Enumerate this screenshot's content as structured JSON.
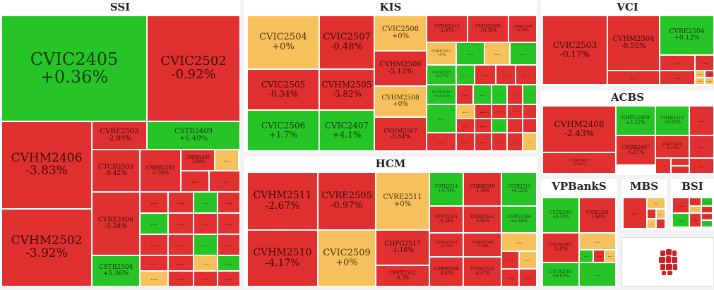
{
  "colors": {
    "red": "#e03030",
    "green": "#27c427",
    "yellow": "#f6c15c",
    "background": "#f2f2f2"
  },
  "more_label": "...",
  "panels": {
    "ssi": {
      "title": "SSI",
      "cells": [
        {
          "name": "CVIC2405",
          "pct": "+0.36%",
          "color": "green"
        },
        {
          "name": "CVIC2502",
          "pct": "-0.92%",
          "color": "red"
        },
        {
          "name": "CVHM2406",
          "pct": "-3.83%",
          "color": "red"
        },
        {
          "name": "CVHM2502",
          "pct": "-3.92%",
          "color": "red"
        },
        {
          "name": "CVRE2503",
          "pct": "-2.89%",
          "color": "red"
        },
        {
          "name": "CSTB2409",
          "pct": "+6.49%",
          "color": "green"
        },
        {
          "name": "CTCB2503",
          "pct": "-9.42%",
          "color": "red"
        },
        {
          "name": "CMBB2503",
          "pct": "-2.56%",
          "color": "red"
        },
        {
          "name": "CMBB2405",
          "pct": "-3.88%",
          "color": "red"
        },
        {
          "name": "CVRE2406",
          "pct": "-5.34%",
          "color": "red"
        },
        {
          "name": "CSTB2504",
          "pct": "+5.36%",
          "color": "green"
        }
      ]
    },
    "kis": {
      "title": "KIS",
      "cells": [
        {
          "name": "CVIC2504",
          "pct": "+0%",
          "color": "yellow"
        },
        {
          "name": "CVIC2507",
          "pct": "-0.48%",
          "color": "red"
        },
        {
          "name": "CVIC2508",
          "pct": "+0%",
          "color": "yellow"
        },
        {
          "name": "CVHM2411",
          "pct": "-2.97%",
          "color": "red"
        },
        {
          "name": "CVHM2509",
          "pct": "-10.58%",
          "color": "red"
        },
        {
          "name": "CVRE2508",
          "pct": "-4.35%",
          "color": "red"
        },
        {
          "name": "CVIC2505",
          "pct": "-0.34%",
          "color": "red"
        },
        {
          "name": "CVHM2505",
          "pct": "-5.82%",
          "color": "red"
        },
        {
          "name": "CVHM2506",
          "pct": "-5.12%",
          "color": "red"
        },
        {
          "name": "CVRE2507",
          "pct": "+0%",
          "color": "yellow"
        },
        {
          "name": "CSTB2510",
          "pct": "+6.77%",
          "color": "green"
        },
        {
          "name": "CSTB2511",
          "pct": "+10.53%",
          "color": "green"
        },
        {
          "name": "CVHM2508",
          "pct": "+0%",
          "color": "yellow"
        },
        {
          "name": "CVIC2506",
          "pct": "+1.7%",
          "color": "green"
        },
        {
          "name": "CVIC2407",
          "pct": "+4.1%",
          "color": "green"
        },
        {
          "name": "CVHM2507",
          "pct": "-5.54%",
          "color": "red"
        }
      ]
    },
    "vci": {
      "title": "VCI",
      "cells": [
        {
          "name": "CVIC2503",
          "pct": "-0.17%",
          "color": "red"
        },
        {
          "name": "CVHM2504",
          "pct": "-0.55%",
          "color": "red"
        },
        {
          "name": "CVRE2504",
          "pct": "+0.12%",
          "color": "green"
        }
      ]
    },
    "acbs": {
      "title": "ACBS",
      "cells": [
        {
          "name": "CVHM2408",
          "pct": "-2.43%",
          "color": "red"
        },
        {
          "name": "CHPG2409",
          "pct": "+2.22%",
          "color": "green"
        },
        {
          "name": "CSTB2410",
          "pct": "+6.63%",
          "color": "green"
        },
        {
          "name": "CMBB2407",
          "pct": "-5.67%",
          "color": "red"
        },
        {
          "name": "CFPT2404",
          "pct": "-4.17%",
          "color": "red"
        },
        {
          "name": "CVRE2407",
          "pct": "-3.42%",
          "color": "red"
        }
      ]
    },
    "hcm": {
      "title": "HCM",
      "cells": [
        {
          "name": "CVHM2511",
          "pct": "-2.67%",
          "color": "red"
        },
        {
          "name": "CVRE2505",
          "pct": "-0.97%",
          "color": "red"
        },
        {
          "name": "CVRE2511",
          "pct": "+0%",
          "color": "yellow"
        },
        {
          "name": "CSTB2514",
          "pct": "+4.78%",
          "color": "green"
        },
        {
          "name": "CMBB2510",
          "pct": "-1.36%",
          "color": "red"
        },
        {
          "name": "CSTB2513",
          "pct": "+6.32%",
          "color": "green"
        },
        {
          "name": "CFPT2511",
          "pct": "-8.28%",
          "color": "red"
        },
        {
          "name": "CVRE2512",
          "pct": "-5.66%",
          "color": "red"
        },
        {
          "name": "CHPG2506",
          "pct": "+4.84%",
          "color": "green"
        },
        {
          "name": "CHPG2517",
          "pct": "-1.16%",
          "color": "red"
        },
        {
          "name": "CMWG2510",
          "pct": "-2.73%",
          "color": "red"
        },
        {
          "name": "CMWG2506",
          "pct": "-7.78%",
          "color": "red"
        },
        {
          "name": "CVHM2510",
          "pct": "-4.17%",
          "color": "red"
        },
        {
          "name": "CVIC2509",
          "pct": "+0%",
          "color": "yellow"
        },
        {
          "name": "CFPT2512",
          "pct": "-9.5%",
          "color": "red"
        },
        {
          "name": "CMBB2509",
          "pct": "-3.03%",
          "color": "red"
        },
        {
          "name": "CVRE2510",
          "pct": "-4.47%",
          "color": "red"
        }
      ]
    },
    "vpbanks": {
      "title": "VPBankS",
      "cells": [
        {
          "name": "CSTB2501",
          "pct": "+9.43%",
          "color": "green"
        },
        {
          "name": "CVRE2501",
          "pct": "-1.84%",
          "color": "red"
        },
        {
          "name": "CTCB2501",
          "pct": "-5.45%",
          "color": "red"
        },
        {
          "name": "CSTB2505",
          "pct": "+9.62%",
          "color": "green"
        }
      ]
    },
    "mbs": {
      "title": "MBS",
      "cells": []
    },
    "bsi": {
      "title": "BSI",
      "cells": []
    }
  }
}
